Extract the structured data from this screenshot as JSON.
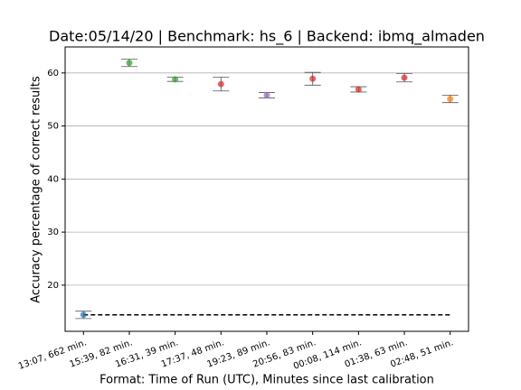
{
  "chart_data": {
    "type": "errorbar",
    "title": "Date:05/14/20 | Benchmark: hs_6 | Backend: ibmq_almaden",
    "x_label": "Format: Time of Run (UTC), Minutes since last calibration",
    "y_label": "Accuracy percentage of correct results",
    "categories": [
      "13:07, 662 min.",
      "15:39, 82 min.",
      "16:31, 39 min.",
      "17:37, 48 min.",
      "19:23, 89 min.",
      "20:56, 83 min.",
      "00:08, 114 min.",
      "01:38, 63 min.",
      "02:48, 51 min."
    ],
    "values": [
      14.4,
      61.9,
      58.8,
      57.9,
      55.8,
      58.9,
      56.9,
      59.1,
      55.1
    ],
    "errors": [
      0.7,
      0.7,
      0.4,
      1.3,
      0.5,
      1.2,
      0.5,
      0.8,
      0.7
    ],
    "colors": [
      "#1f77b4",
      "#2ca02c",
      "#2ca02c",
      "#d62728",
      "#9467bd",
      "#d62728",
      "#d62728",
      "#d62728",
      "#ff7f0e"
    ],
    "reference_line": 14.4,
    "ylim": [
      11.3,
      64.9
    ],
    "yticks": [
      20,
      30,
      40,
      50,
      60
    ],
    "grid": true
  }
}
